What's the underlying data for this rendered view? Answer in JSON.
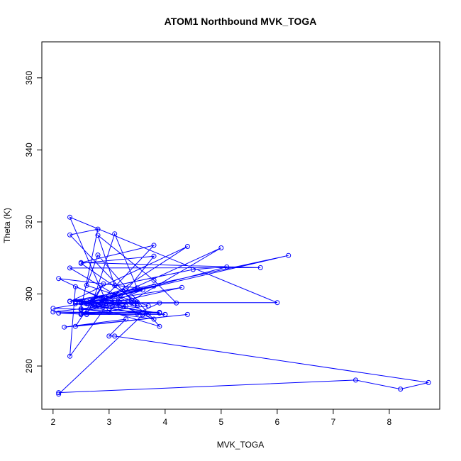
{
  "chart_data": {
    "type": "line",
    "title": "ATOM1 Northbound MVK_TOGA",
    "xlabel": "MVK_TOGA",
    "ylabel": "Theta (K)",
    "xlim": [
      1.8,
      8.9
    ],
    "ylim": [
      268,
      370
    ],
    "xticks": [
      2,
      3,
      4,
      5,
      6,
      7,
      8
    ],
    "yticks": [
      280,
      300,
      320,
      340,
      360
    ],
    "grid": false,
    "legend": "none",
    "color": "#0000ff",
    "markers": "open-circle",
    "series": [
      {
        "x": [
          2.1,
          7.4,
          8.2,
          8.7,
          3.1,
          3.0,
          3.3,
          2.2,
          4.4,
          2.4,
          2.9,
          2.6,
          3.6,
          2.0,
          3.4,
          3.0,
          2.3,
          2.4,
          3.8,
          2.5,
          2.8,
          2.3,
          3.5,
          2.5,
          4.3,
          2.0,
          3.9,
          2.5,
          3.7,
          2.6,
          2.8,
          3.9,
          2.5,
          3.3,
          2.7,
          3.0,
          2.9,
          6.0,
          2.3,
          3.0,
          2.4,
          3.5,
          3.9,
          2.7,
          3.1,
          3.5,
          2.1,
          3.2,
          5.0,
          2.8,
          3.9,
          2.5,
          3.6,
          2.6,
          3.5,
          2.4,
          3.7,
          2.3,
          5.7,
          2.5,
          3.8,
          2.8,
          4.4,
          2.3,
          3.1,
          3.3,
          2.6,
          3.8,
          2.3,
          3.4,
          2.7,
          6.2,
          2.4,
          3.1,
          2.5,
          4.0,
          2.5,
          4.0,
          2.6,
          2.1,
          3.0,
          3.8,
          2.5,
          3.5,
          2.7,
          4.2,
          3.8,
          2.8,
          3.1,
          4.5,
          5.1,
          2.6,
          2.5,
          2.8,
          3.6,
          2.1
        ],
        "y": [
          272.6,
          276.1,
          273.6,
          275.4,
          288.3,
          288.3,
          293.0,
          290.8,
          294.3,
          291.0,
          302.8,
          294.4,
          294.8,
          295.0,
          297.5,
          297.7,
          282.7,
          302.0,
          293.0,
          295.9,
          318.0,
          316.4,
          296.7,
          295.6,
          301.8,
          296.0,
          294.9,
          294.3,
          296.7,
          302.4,
          310.8,
          291.0,
          297.5,
          301.5,
          296.4,
          299.5,
          297.6,
          297.6,
          321.3,
          296.0,
          298.0,
          294.6,
          297.5,
          297.4,
          316.7,
          301.7,
          304.3,
          296.3,
          312.8,
          297.1,
          294.7,
          294.6,
          301.1,
          297.3,
          297.3,
          297.3,
          294.4,
          307.2,
          307.3,
          308.7,
          313.5,
          297.0,
          313.2,
          297.9,
          299.7,
          296.6,
          298.0,
          302.2,
          298.0,
          298.3,
          298.0,
          310.7,
          297.9,
          298.3,
          297.9,
          294.3,
          294.3,
          294.3,
          294.3,
          294.7,
          294.9,
          310.5,
          308.5,
          297.8,
          297.6,
          297.5,
          303.8,
          316.3,
          302.3,
          306.8,
          307.5,
          297.3,
          297.5,
          296.8,
          294.2,
          272.2
        ]
      }
    ]
  }
}
